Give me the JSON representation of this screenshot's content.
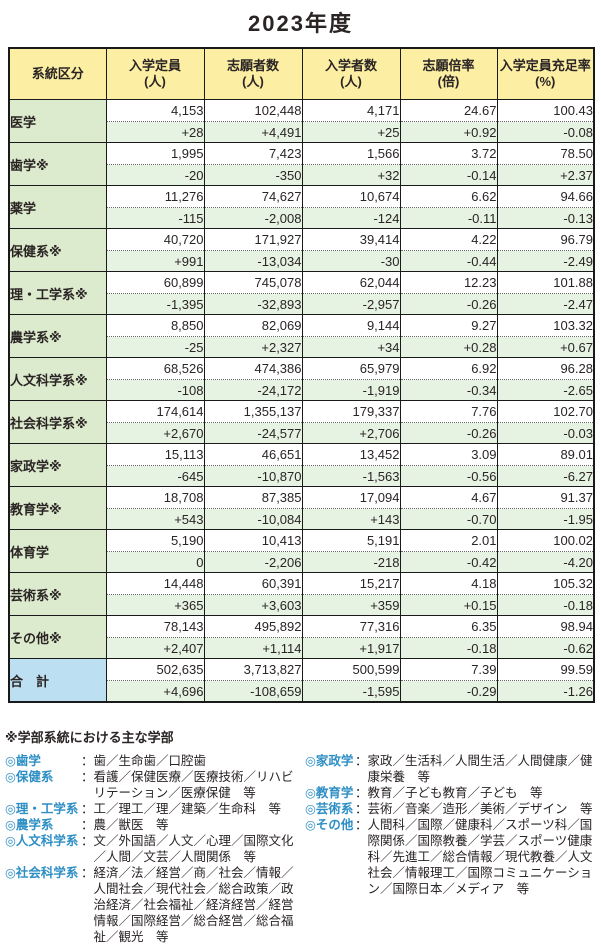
{
  "title": "2023年度",
  "colors": {
    "positive_change": "#0071BC",
    "negative_change": "#E8380D",
    "neutral_change": "#2A2424",
    "header_bg": "#FCEFA4",
    "category_bg": "#DCEACD",
    "change_row_bg": "#E6F2E2",
    "total_label_bg": "#BCDFF1",
    "border": "#1A1A1A",
    "footnote_label": "#2E8FC5"
  },
  "table": {
    "columns": [
      {
        "label": "系統区分",
        "unit": ""
      },
      {
        "label": "入学定員",
        "unit": "(人)"
      },
      {
        "label": "志願者数",
        "unit": "(人)"
      },
      {
        "label": "入学者数",
        "unit": "(人)"
      },
      {
        "label": "志願倍率",
        "unit": "(倍)"
      },
      {
        "label": "入学定員充足率",
        "unit": "(%)"
      }
    ],
    "rows": [
      {
        "category": "医学",
        "is_total": false,
        "values": [
          "4,153",
          "102,448",
          "4,171",
          "24.67",
          "100.43"
        ],
        "changes": [
          "+28",
          "+4,491",
          "+25",
          "+0.92",
          "-0.08"
        ]
      },
      {
        "category": "歯学※",
        "is_total": false,
        "values": [
          "1,995",
          "7,423",
          "1,566",
          "3.72",
          "78.50"
        ],
        "changes": [
          "-20",
          "-350",
          "+32",
          "-0.14",
          "+2.37"
        ]
      },
      {
        "category": "薬学",
        "is_total": false,
        "values": [
          "11,276",
          "74,627",
          "10,674",
          "6.62",
          "94.66"
        ],
        "changes": [
          "-115",
          "-2,008",
          "-124",
          "-0.11",
          "-0.13"
        ]
      },
      {
        "category": "保健系※",
        "is_total": false,
        "values": [
          "40,720",
          "171,927",
          "39,414",
          "4.22",
          "96.79"
        ],
        "changes": [
          "+991",
          "-13,034",
          "-30",
          "-0.44",
          "-2.49"
        ]
      },
      {
        "category": "理・工学系※",
        "is_total": false,
        "values": [
          "60,899",
          "745,078",
          "62,044",
          "12.23",
          "101.88"
        ],
        "changes": [
          "-1,395",
          "-32,893",
          "-2,957",
          "-0.26",
          "-2.47"
        ]
      },
      {
        "category": "農学系※",
        "is_total": false,
        "values": [
          "8,850",
          "82,069",
          "9,144",
          "9.27",
          "103.32"
        ],
        "changes": [
          "-25",
          "+2,327",
          "+34",
          "+0.28",
          "+0.67"
        ]
      },
      {
        "category": "人文科学系※",
        "is_total": false,
        "values": [
          "68,526",
          "474,386",
          "65,979",
          "6.92",
          "96.28"
        ],
        "changes": [
          "-108",
          "-24,172",
          "-1,919",
          "-0.34",
          "-2.65"
        ]
      },
      {
        "category": "社会科学系※",
        "is_total": false,
        "values": [
          "174,614",
          "1,355,137",
          "179,337",
          "7.76",
          "102.70"
        ],
        "changes": [
          "+2,670",
          "-24,577",
          "+2,706",
          "-0.26",
          "-0.03"
        ]
      },
      {
        "category": "家政学※",
        "is_total": false,
        "values": [
          "15,113",
          "46,651",
          "13,452",
          "3.09",
          "89.01"
        ],
        "changes": [
          "-645",
          "-10,870",
          "-1,563",
          "-0.56",
          "-6.27"
        ]
      },
      {
        "category": "教育学※",
        "is_total": false,
        "values": [
          "18,708",
          "87,385",
          "17,094",
          "4.67",
          "91.37"
        ],
        "changes": [
          "+543",
          "-10,084",
          "+143",
          "-0.70",
          "-1.95"
        ]
      },
      {
        "category": "体育学",
        "is_total": false,
        "values": [
          "5,190",
          "10,413",
          "5,191",
          "2.01",
          "100.02"
        ],
        "changes": [
          "0",
          "-2,206",
          "-218",
          "-0.42",
          "-4.20"
        ]
      },
      {
        "category": "芸術系※",
        "is_total": false,
        "values": [
          "14,448",
          "60,391",
          "15,217",
          "4.18",
          "105.32"
        ],
        "changes": [
          "+365",
          "+3,603",
          "+359",
          "+0.15",
          "-0.18"
        ]
      },
      {
        "category": "その他※",
        "is_total": false,
        "values": [
          "78,143",
          "495,892",
          "77,316",
          "6.35",
          "98.94"
        ],
        "changes": [
          "+2,407",
          "+1,114",
          "+1,917",
          "-0.18",
          "-0.62"
        ]
      },
      {
        "category": "合　計",
        "is_total": true,
        "values": [
          "502,635",
          "3,713,827",
          "500,599",
          "7.39",
          "99.59"
        ],
        "changes": [
          "+4,696",
          "-108,659",
          "-1,595",
          "-0.29",
          "-1.26"
        ]
      }
    ]
  },
  "footnote": {
    "title": "※学部系統における主な学部",
    "separator": "：",
    "left": [
      {
        "label": "◎歯学",
        "text": "歯／生命歯／口腔歯"
      },
      {
        "label": "◎保健系",
        "text": "看護／保健医療／医療技術／リハビリテーション／医療保健　等"
      },
      {
        "label": "◎理・工学系",
        "text": "工／理工／理／建築／生命科　等"
      },
      {
        "label": "◎農学系",
        "text": "農／獣医　等"
      },
      {
        "label": "◎人文科学系",
        "text": "文／外国語／人文／心理／国際文化／人間／文芸／人間関係　等"
      },
      {
        "label": "◎社会科学系",
        "text": "経済／法／経営／商／社会／情報／人間社会／現代社会／総合政策／政治経済／社会福祉／経済経営／経営情報／国際経営／総合経営／総合福祉／観光　等"
      }
    ],
    "right": [
      {
        "label": "◎家政学",
        "text": "家政／生活科／人間生活／人間健康／健康栄養　等"
      },
      {
        "label": "◎教育学",
        "text": "教育／子ども教育／子ども　等"
      },
      {
        "label": "◎芸術系",
        "text": "芸術／音楽／造形／美術／デザイン　等"
      },
      {
        "label": "◎その他",
        "text": "人間科／国際／健康科／スポーツ科／国際関係／国際教養／学芸／スポーツ健康科／先進工／総合情報／現代教養／人文社会／情報理工／国際コミュニケーション／国際日本／メディア　等"
      }
    ]
  }
}
